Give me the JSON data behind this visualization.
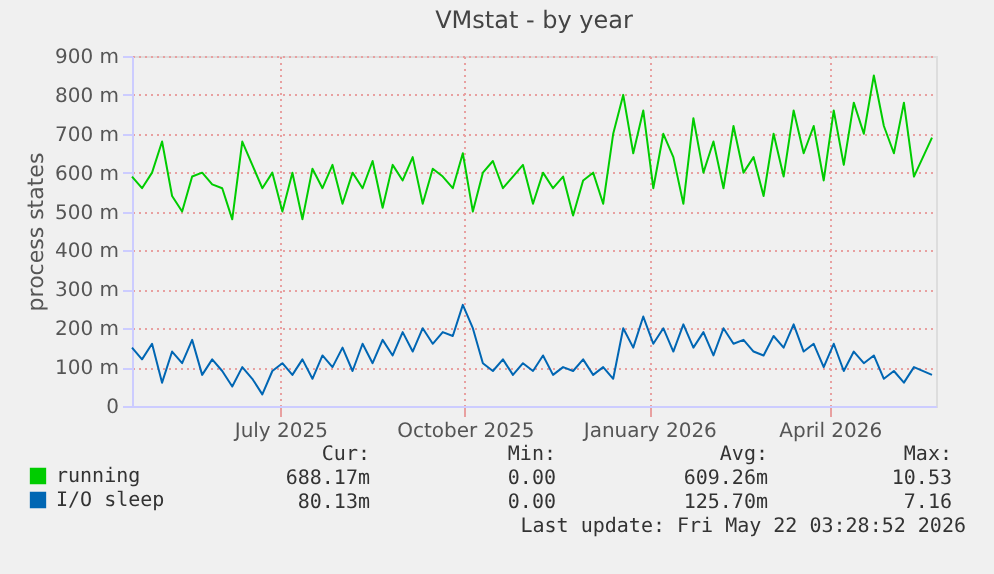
{
  "chart_data": {
    "type": "line",
    "title": "VMstat - by year",
    "ylabel": "process states",
    "x": [
      "2025-04-18",
      "2025-04-23",
      "2025-04-28",
      "2025-05-03",
      "2025-05-08",
      "2025-05-13",
      "2025-05-18",
      "2025-05-23",
      "2025-05-28",
      "2025-06-02",
      "2025-06-07",
      "2025-06-12",
      "2025-06-17",
      "2025-06-22",
      "2025-06-27",
      "2025-07-02",
      "2025-07-07",
      "2025-07-12",
      "2025-07-17",
      "2025-07-22",
      "2025-07-27",
      "2025-08-01",
      "2025-08-06",
      "2025-08-11",
      "2025-08-16",
      "2025-08-21",
      "2025-08-26",
      "2025-08-31",
      "2025-09-05",
      "2025-09-10",
      "2025-09-15",
      "2025-09-20",
      "2025-09-25",
      "2025-09-30",
      "2025-10-05",
      "2025-10-10",
      "2025-10-15",
      "2025-10-20",
      "2025-10-25",
      "2025-10-30",
      "2025-11-04",
      "2025-11-09",
      "2025-11-14",
      "2025-11-19",
      "2025-11-24",
      "2025-11-29",
      "2025-12-04",
      "2025-12-09",
      "2025-12-14",
      "2025-12-19",
      "2025-12-24",
      "2025-12-29",
      "2026-01-03",
      "2026-01-08",
      "2026-01-13",
      "2026-01-18",
      "2026-01-23",
      "2026-01-28",
      "2026-02-02",
      "2026-02-07",
      "2026-02-12",
      "2026-02-17",
      "2026-02-22",
      "2026-02-27",
      "2026-03-04",
      "2026-03-09",
      "2026-03-14",
      "2026-03-19",
      "2026-03-24",
      "2026-03-29",
      "2026-04-03",
      "2026-04-08",
      "2026-04-13",
      "2026-04-18",
      "2026-04-23",
      "2026-04-28",
      "2026-05-03",
      "2026-05-08",
      "2026-05-13",
      "2026-05-22"
    ],
    "series": [
      {
        "name": "running",
        "color": "#00cc00",
        "values": [
          590,
          560,
          600,
          680,
          540,
          500,
          590,
          600,
          570,
          560,
          480,
          680,
          620,
          560,
          600,
          500,
          600,
          480,
          610,
          560,
          620,
          520,
          600,
          560,
          630,
          510,
          620,
          580,
          640,
          520,
          610,
          590,
          560,
          650,
          500,
          600,
          630,
          560,
          590,
          620,
          520,
          600,
          560,
          590,
          490,
          580,
          600,
          520,
          700,
          800,
          650,
          760,
          560,
          700,
          640,
          520,
          740,
          600,
          680,
          560,
          720,
          600,
          640,
          540,
          700,
          590,
          760,
          650,
          720,
          580,
          760,
          620,
          780,
          700,
          850,
          720,
          650,
          780,
          590,
          690
        ]
      },
      {
        "name": "I/O sleep",
        "color": "#0066b3",
        "values": [
          150,
          120,
          160,
          60,
          140,
          110,
          170,
          80,
          120,
          90,
          50,
          100,
          70,
          30,
          90,
          110,
          80,
          120,
          70,
          130,
          100,
          150,
          90,
          160,
          110,
          170,
          130,
          190,
          140,
          200,
          160,
          190,
          180,
          260,
          200,
          110,
          90,
          120,
          80,
          110,
          90,
          130,
          80,
          100,
          90,
          120,
          80,
          100,
          70,
          200,
          150,
          230,
          160,
          200,
          140,
          210,
          150,
          190,
          130,
          200,
          160,
          170,
          140,
          130,
          180,
          150,
          210,
          140,
          160,
          100,
          160,
          90,
          140,
          110,
          130,
          70,
          90,
          60,
          100,
          80
        ]
      }
    ],
    "xlim": [
      "2025-04-18",
      "2026-05-24"
    ],
    "xticks": [
      {
        "value": "2025-07-01",
        "label": "July 2025"
      },
      {
        "value": "2025-10-01",
        "label": "October 2025"
      },
      {
        "value": "2026-01-01",
        "label": "January 2026"
      },
      {
        "value": "2026-04-01",
        "label": "April 2026"
      }
    ],
    "ylim": [
      0,
      900
    ],
    "yticks": [
      {
        "value": 0,
        "label": "0"
      },
      {
        "value": 100,
        "label": "100 m"
      },
      {
        "value": 200,
        "label": "200 m"
      },
      {
        "value": 300,
        "label": "300 m"
      },
      {
        "value": 400,
        "label": "400 m"
      },
      {
        "value": 500,
        "label": "500 m"
      },
      {
        "value": 600,
        "label": "600 m"
      },
      {
        "value": 700,
        "label": "700 m"
      },
      {
        "value": 800,
        "label": "800 m"
      },
      {
        "value": 900,
        "label": "900 m"
      }
    ],
    "grid": true,
    "legend": "bottom",
    "marker": "none",
    "line_style": "solid",
    "annotations": [
      "Cur:",
      "Min:",
      "Avg:",
      "Max:",
      "688.17m",
      "0.00",
      "609.26m",
      "10.53",
      "80.13m",
      "0.00",
      "125.70m",
      "7.16",
      "Last update: Fri May 22 03:28:52 2026"
    ]
  }
}
